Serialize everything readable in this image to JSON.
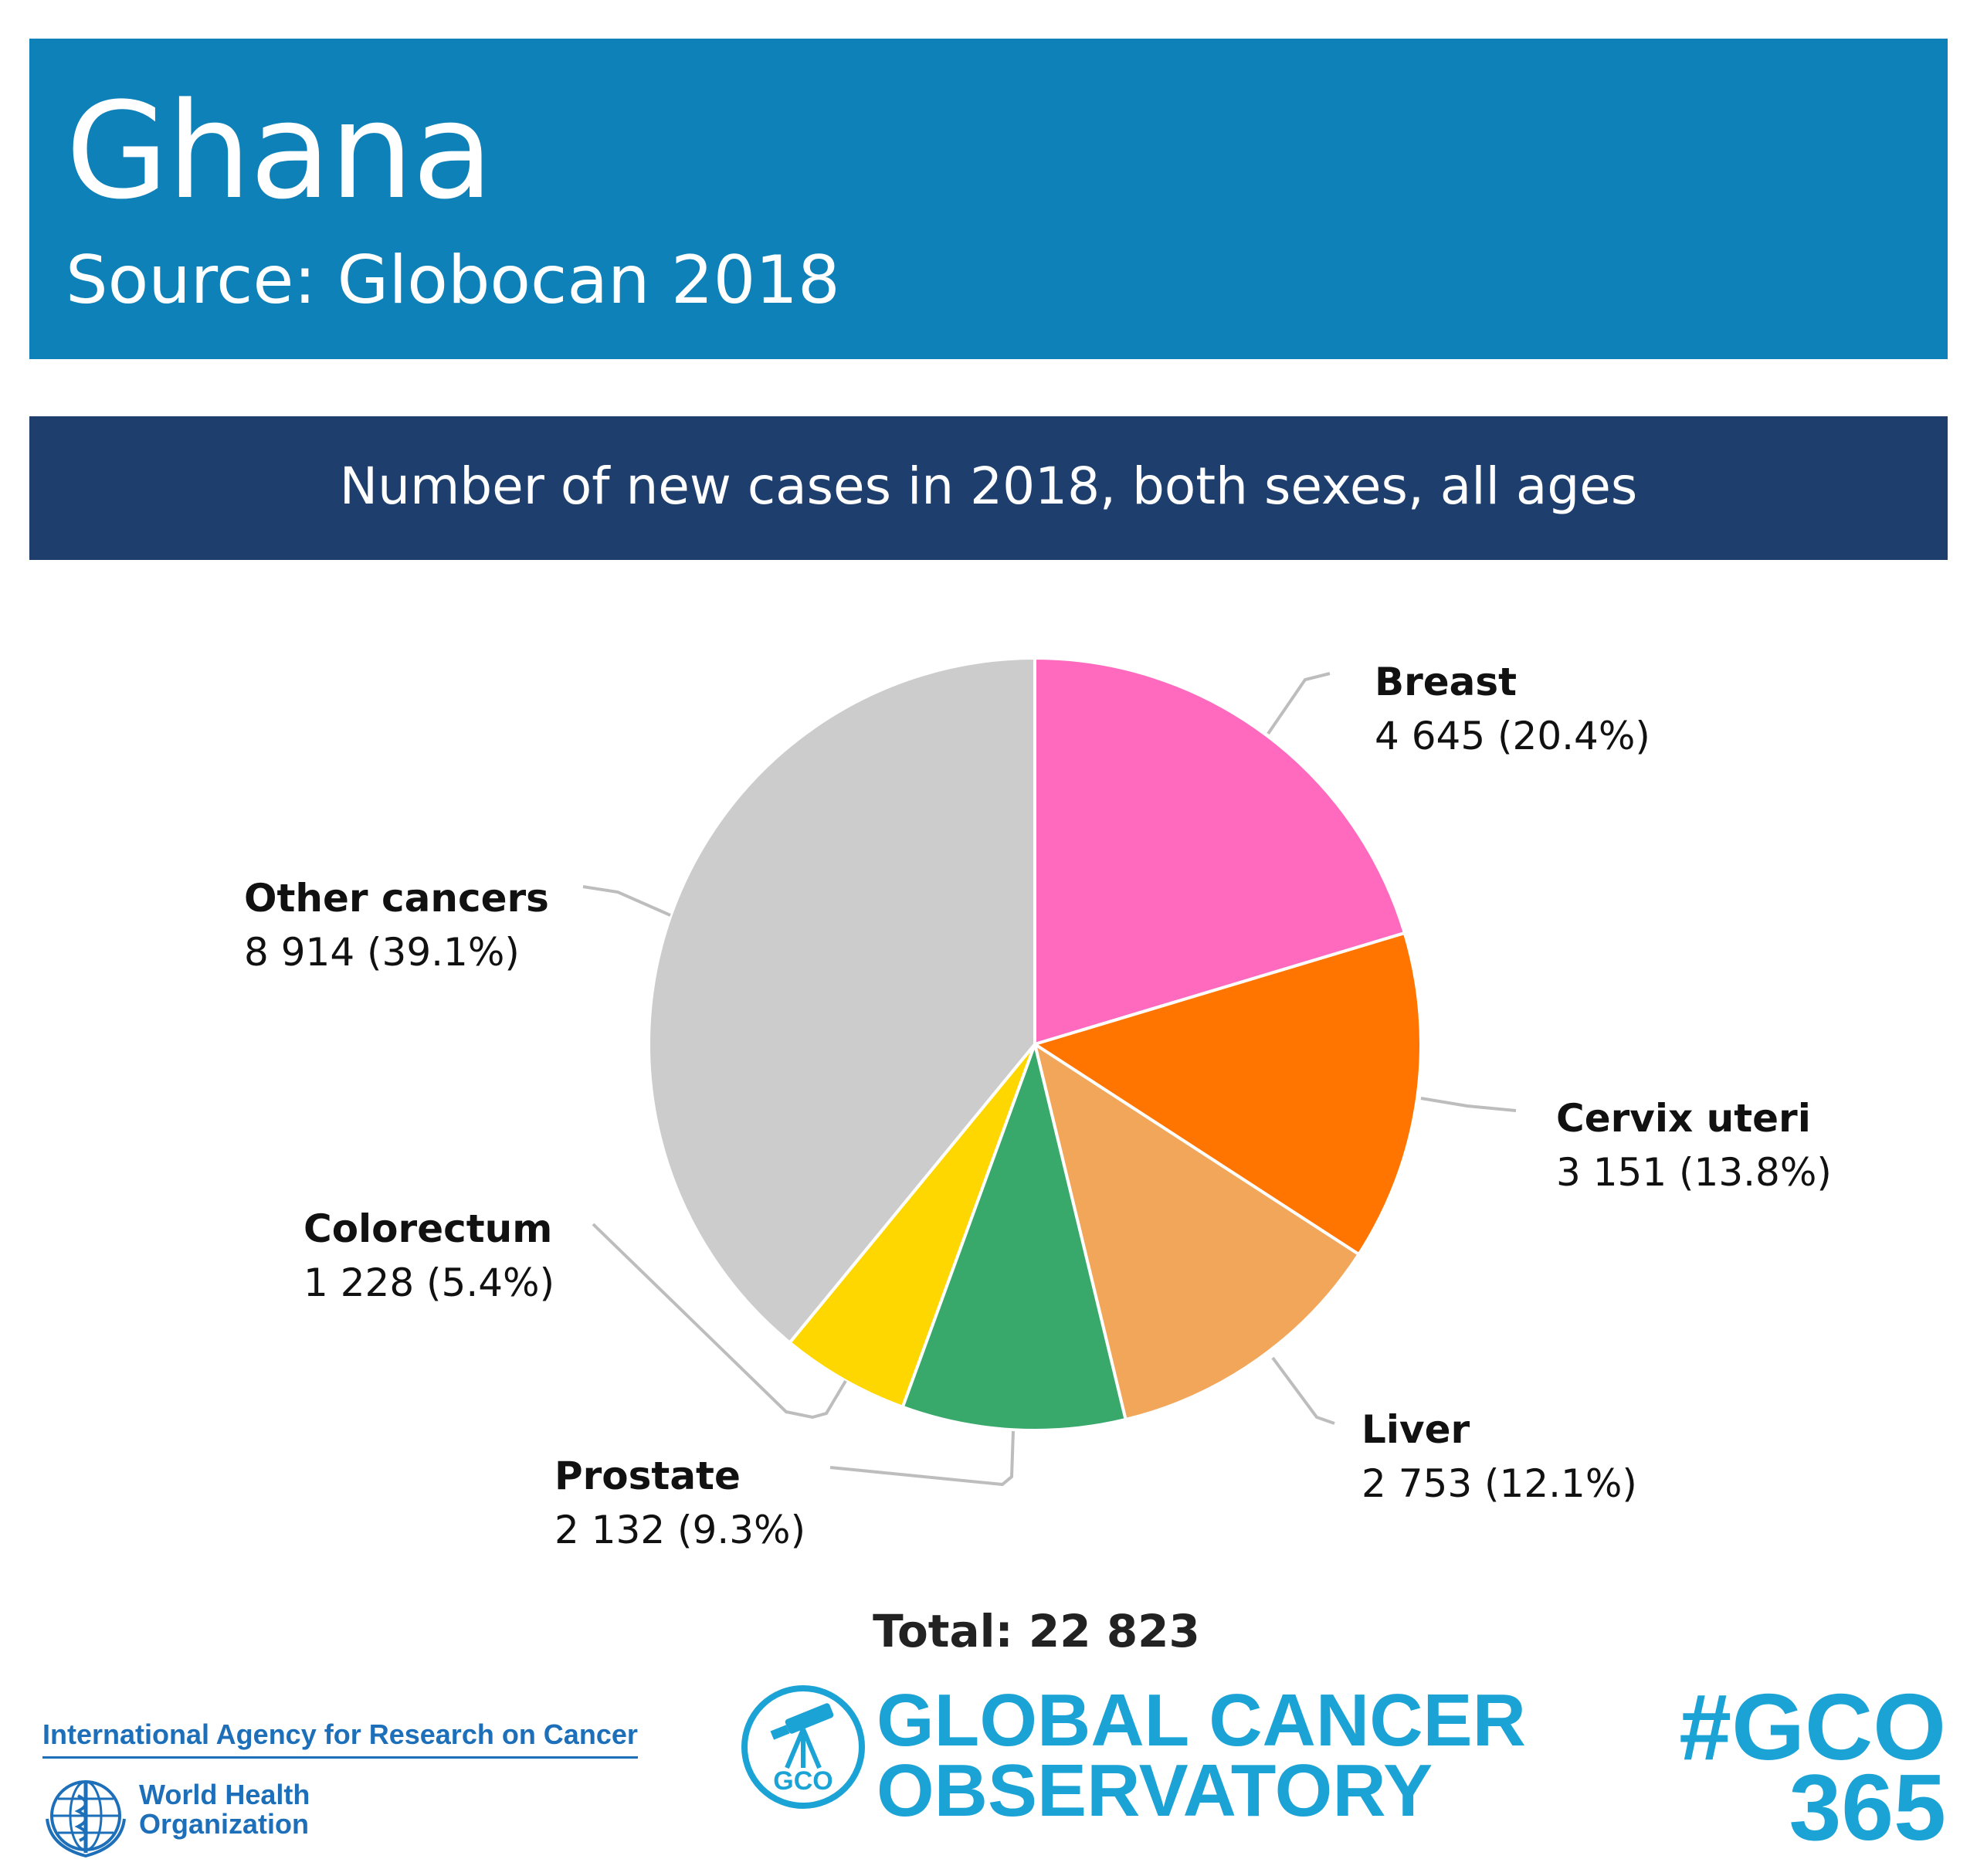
{
  "header": {
    "country": "Ghana",
    "source": "Source: Globocan 2018"
  },
  "subtitle": "Number of new cases in 2018, both sexes, all ages",
  "total_label": "Total: 22 823",
  "footer": {
    "iarc": "International Agency for Research on Cancer",
    "who_line1": "World Health",
    "who_line2": "Organization",
    "gco_line1": "GLOBAL CANCER",
    "gco_line2": "OBSERVATORY",
    "gco_badge": "GCO",
    "hashtag_line1": "#GCO",
    "hashtag_line2": "365"
  },
  "colors": {
    "banner": "#0e81b8",
    "subbar": "#1e3f6d",
    "brand_blue": "#1ba3d6"
  },
  "chart_data": {
    "type": "pie",
    "start_angle": "12 o'clock, clockwise",
    "slices": [
      {
        "label": "Breast",
        "value": 4645,
        "percent": 20.4,
        "value_text": "4 645 (20.4%)",
        "color": "#ff69be"
      },
      {
        "label": "Cervix uteri",
        "value": 3151,
        "percent": 13.8,
        "value_text": "3 151 (13.8%)",
        "color": "#ff7500"
      },
      {
        "label": "Liver",
        "value": 2753,
        "percent": 12.1,
        "value_text": "2 753 (12.1%)",
        "color": "#f2a65a"
      },
      {
        "label": "Prostate",
        "value": 2132,
        "percent": 9.3,
        "value_text": "2 132 (9.3%)",
        "color": "#38a86b"
      },
      {
        "label": "Colorectum",
        "value": 1228,
        "percent": 5.4,
        "value_text": "1 228 (5.4%)",
        "color": "#ffd700"
      },
      {
        "label": "Other cancers",
        "value": 8914,
        "percent": 39.1,
        "value_text": "8 914 (39.1%)",
        "color": "#cccccc"
      }
    ],
    "total": 22823
  }
}
